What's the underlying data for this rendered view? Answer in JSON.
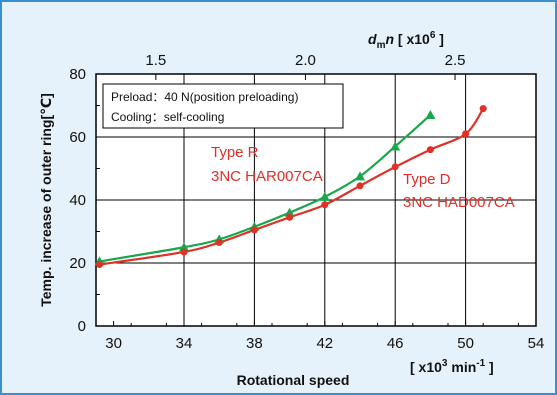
{
  "chart_data": {
    "type": "line",
    "xlabel": "Rotational speed",
    "xunit": "[ x10",
    "xunit_exp": "3",
    "xunit_mid": " min",
    "xunit_exp2": "-1",
    "xunit_end": " ]",
    "ylabel": "Temp. increase of outer ring[℃]",
    "toplabel": {
      "dm": "d",
      "dm_sub": "m",
      "n": "n",
      "unit": " [ x10",
      "unit_exp": "6",
      "unit_end": " ]"
    },
    "xlim": [
      29,
      54
    ],
    "ylim": [
      0,
      80
    ],
    "x_ticks": [
      "30",
      "34",
      "38",
      "42",
      "46",
      "50",
      "54"
    ],
    "y_ticks": [
      "0",
      "20",
      "40",
      "60",
      "80"
    ],
    "top_ticks": [
      "1.5",
      "2.0",
      "2.5"
    ],
    "top_tick_positions_x": [
      32.4,
      40.9,
      49.4
    ],
    "legend_box": {
      "line1_label": "Preload：40 N(position preloading)",
      "line2_label": "Cooling：self-cooling"
    },
    "series": [
      {
        "name": "Type R 3NC HAR007CA",
        "label_line1": "Type R",
        "label_line2": "3NC HAR007CA",
        "color": "#1aa64a",
        "marker": "triangle",
        "x": [
          29.2,
          34,
          36,
          38,
          40,
          42,
          44,
          46,
          48
        ],
        "y": [
          20.5,
          25,
          27.5,
          31.5,
          36,
          41,
          47.5,
          57,
          67
        ]
      },
      {
        "name": "Type D 3NC HAD007CA",
        "label_line1": "Type D",
        "label_line2": "3NC HAD007CA",
        "color": "#e03028",
        "marker": "circle",
        "x": [
          29.2,
          34,
          36,
          38,
          40,
          42,
          44,
          46,
          48,
          50,
          51
        ],
        "y": [
          19.5,
          23.5,
          26.5,
          30.5,
          34.5,
          38.5,
          44.5,
          50.5,
          56,
          61,
          69
        ]
      }
    ]
  }
}
